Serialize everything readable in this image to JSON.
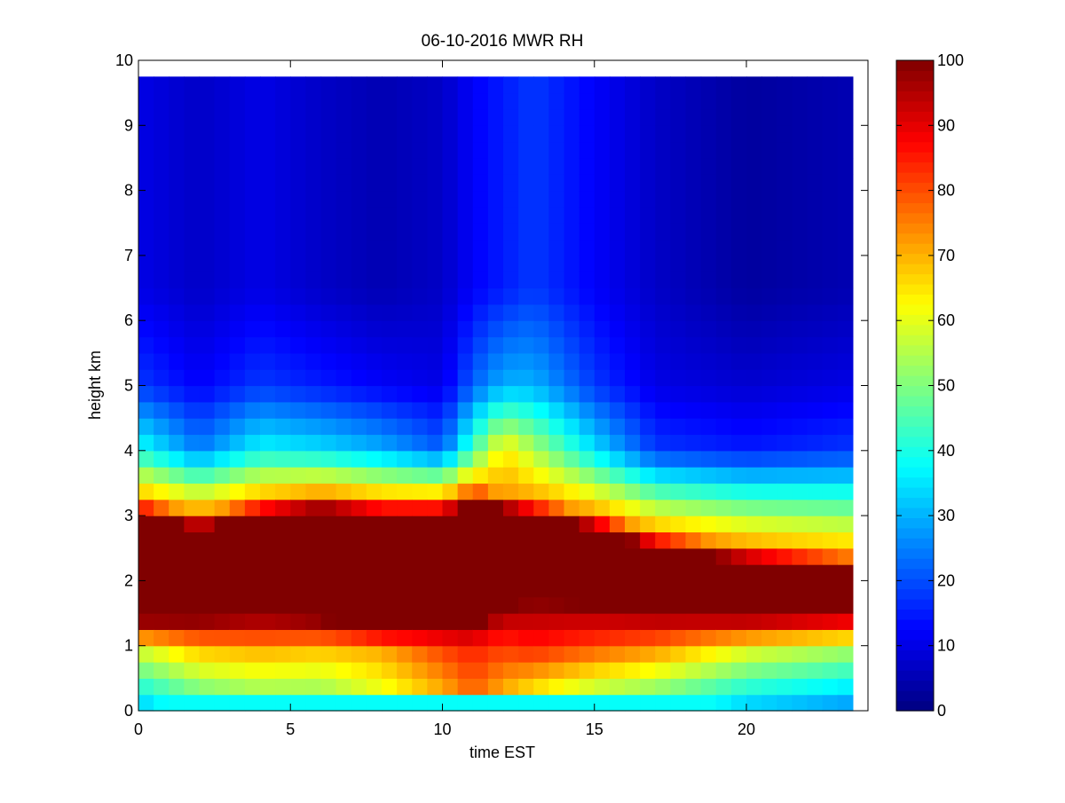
{
  "chart_data": {
    "type": "heatmap",
    "title": "06-10-2016 MWR RH",
    "xlabel": "time EST",
    "ylabel": "height km",
    "xlim": [
      0,
      24
    ],
    "ylim": [
      0,
      10
    ],
    "x_ticks": [
      0,
      5,
      10,
      15,
      20
    ],
    "y_ticks": [
      0,
      1,
      2,
      3,
      4,
      5,
      6,
      7,
      8,
      9,
      10
    ],
    "colorbar": {
      "colormap": "jet",
      "clim": [
        0,
        100
      ],
      "ticks": [
        0,
        10,
        20,
        30,
        40,
        50,
        60,
        70,
        80,
        90,
        100
      ]
    },
    "time_range": [
      0,
      23.5
    ],
    "height_top": 9.75,
    "time_step": 0.5,
    "height_step": 0.25,
    "grid": false,
    "profile_keypoints": [
      {
        "t": 0.0,
        "rh_surface": 30,
        "rh_at_1km": 60,
        "moist_base_km": 1.4,
        "moist_top_km": 3.0,
        "rh_at_4km": 40,
        "rh_at_5km": 18,
        "rh_upper": 10
      },
      {
        "t": 2.0,
        "rh_surface": 40,
        "rh_at_1km": 70,
        "moist_base_km": 1.4,
        "moist_top_km": 2.8,
        "rh_at_4km": 25,
        "rh_at_5km": 12,
        "rh_upper": 7
      },
      {
        "t": 4.0,
        "rh_surface": 45,
        "rh_at_1km": 72,
        "moist_base_km": 1.45,
        "moist_top_km": 3.0,
        "rh_at_4km": 38,
        "rh_at_5km": 18,
        "rh_upper": 10
      },
      {
        "t": 6.0,
        "rh_surface": 45,
        "rh_at_1km": 70,
        "moist_base_km": 1.4,
        "moist_top_km": 3.1,
        "rh_at_4km": 35,
        "rh_at_5km": 15,
        "rh_upper": 7
      },
      {
        "t": 8.0,
        "rh_surface": 55,
        "rh_at_1km": 72,
        "moist_base_km": 1.25,
        "moist_top_km": 3.0,
        "rh_at_4km": 30,
        "rh_at_5km": 12,
        "rh_upper": 5
      },
      {
        "t": 10.0,
        "rh_surface": 65,
        "rh_at_1km": 82,
        "moist_base_km": 1.3,
        "moist_top_km": 3.0,
        "rh_at_4km": 22,
        "rh_at_5km": 10,
        "rh_upper": 7
      },
      {
        "t": 11.0,
        "rh_surface": 75,
        "rh_at_1km": 85,
        "moist_base_km": 1.3,
        "moist_top_km": 3.2,
        "rh_at_4km": 45,
        "rh_at_5km": 22,
        "rh_upper": 12
      },
      {
        "t": 12.0,
        "rh_surface": 65,
        "rh_at_1km": 82,
        "moist_base_km": 1.6,
        "moist_top_km": 3.1,
        "rh_at_4km": 65,
        "rh_at_5km": 30,
        "rh_upper": 15
      },
      {
        "t": 13.0,
        "rh_surface": 55,
        "rh_at_1km": 85,
        "moist_base_km": 1.7,
        "moist_top_km": 3.0,
        "rh_at_4km": 55,
        "rh_at_5km": 30,
        "rh_upper": 18
      },
      {
        "t": 15.0,
        "rh_surface": 45,
        "rh_at_1km": 80,
        "moist_base_km": 1.6,
        "moist_top_km": 2.8,
        "rh_at_4km": 35,
        "rh_at_5km": 18,
        "rh_upper": 12
      },
      {
        "t": 17.0,
        "rh_surface": 40,
        "rh_at_1km": 75,
        "moist_base_km": 1.5,
        "moist_top_km": 2.5,
        "rh_at_4km": 18,
        "rh_at_5km": 10,
        "rh_upper": 7
      },
      {
        "t": 20.0,
        "rh_surface": 30,
        "rh_at_1km": 62,
        "moist_base_km": 1.45,
        "moist_top_km": 2.3,
        "rh_at_4km": 15,
        "rh_at_5km": 8,
        "rh_upper": 3
      },
      {
        "t": 23.5,
        "rh_surface": 25,
        "rh_at_1km": 55,
        "moist_base_km": 1.5,
        "moist_top_km": 2.15,
        "rh_at_4km": 18,
        "rh_at_5km": 10,
        "rh_upper": 5
      }
    ]
  }
}
